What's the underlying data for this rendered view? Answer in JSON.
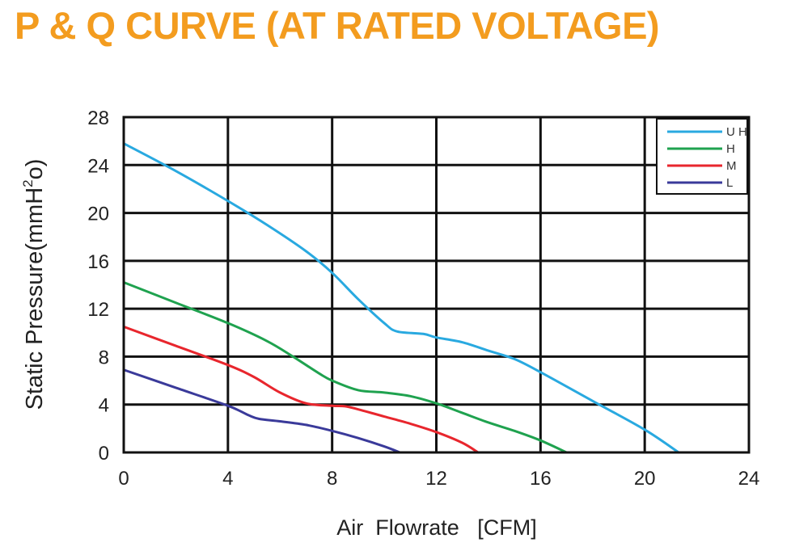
{
  "chart_data": {
    "type": "line",
    "title": "P & Q CURVE (AT RATED VOLTAGE)",
    "xlabel": "Air  Flowrate   [CFM]",
    "ylabel": "Static Pressure(mmH",
    "ylabel_sup": "2",
    "ylabel_tail": "o)",
    "xlim": [
      0,
      24
    ],
    "ylim": [
      0,
      28
    ],
    "xticks": [
      0,
      4,
      8,
      12,
      16,
      20,
      24
    ],
    "yticks": [
      0,
      4,
      8,
      12,
      16,
      20,
      24,
      28
    ],
    "grid": true,
    "legend_position": "top-right",
    "series": [
      {
        "name": "U H",
        "color": "#29a9e0",
        "points": [
          [
            0,
            25.8
          ],
          [
            2,
            23.5
          ],
          [
            4,
            21.0
          ],
          [
            5.5,
            19.0
          ],
          [
            7,
            16.8
          ],
          [
            8,
            15.0
          ],
          [
            9,
            12.8
          ],
          [
            10,
            10.8
          ],
          [
            10.5,
            10.1
          ],
          [
            11.5,
            9.9
          ],
          [
            12,
            9.6
          ],
          [
            13,
            9.2
          ],
          [
            14,
            8.5
          ],
          [
            15,
            7.8
          ],
          [
            16,
            6.7
          ],
          [
            18,
            4.3
          ],
          [
            20,
            1.9
          ],
          [
            21.3,
            0
          ]
        ]
      },
      {
        "name": "H",
        "color": "#1fa24f",
        "points": [
          [
            0,
            14.2
          ],
          [
            2,
            12.5
          ],
          [
            4,
            10.8
          ],
          [
            5.5,
            9.3
          ],
          [
            6.5,
            8.0
          ],
          [
            7.5,
            6.6
          ],
          [
            8,
            6.0
          ],
          [
            9,
            5.2
          ],
          [
            10,
            5.0
          ],
          [
            11,
            4.7
          ],
          [
            12,
            4.1
          ],
          [
            13,
            3.3
          ],
          [
            14,
            2.5
          ],
          [
            15,
            1.8
          ],
          [
            16,
            1.0
          ],
          [
            17,
            0
          ]
        ]
      },
      {
        "name": "M",
        "color": "#e8262d",
        "points": [
          [
            0,
            10.5
          ],
          [
            2,
            8.9
          ],
          [
            4,
            7.3
          ],
          [
            5,
            6.3
          ],
          [
            6,
            5.0
          ],
          [
            7,
            4.1
          ],
          [
            8,
            3.9
          ],
          [
            8.5,
            3.85
          ],
          [
            9,
            3.6
          ],
          [
            10,
            3.0
          ],
          [
            11,
            2.4
          ],
          [
            12,
            1.7
          ],
          [
            13,
            0.8
          ],
          [
            13.6,
            0
          ]
        ]
      },
      {
        "name": "L",
        "color": "#3a3a9a",
        "points": [
          [
            0,
            6.9
          ],
          [
            2,
            5.4
          ],
          [
            4,
            3.9
          ],
          [
            4.8,
            3.1
          ],
          [
            5.2,
            2.8
          ],
          [
            6,
            2.6
          ],
          [
            7,
            2.3
          ],
          [
            8,
            1.8
          ],
          [
            9,
            1.2
          ],
          [
            10,
            0.5
          ],
          [
            10.6,
            0
          ]
        ]
      }
    ]
  }
}
